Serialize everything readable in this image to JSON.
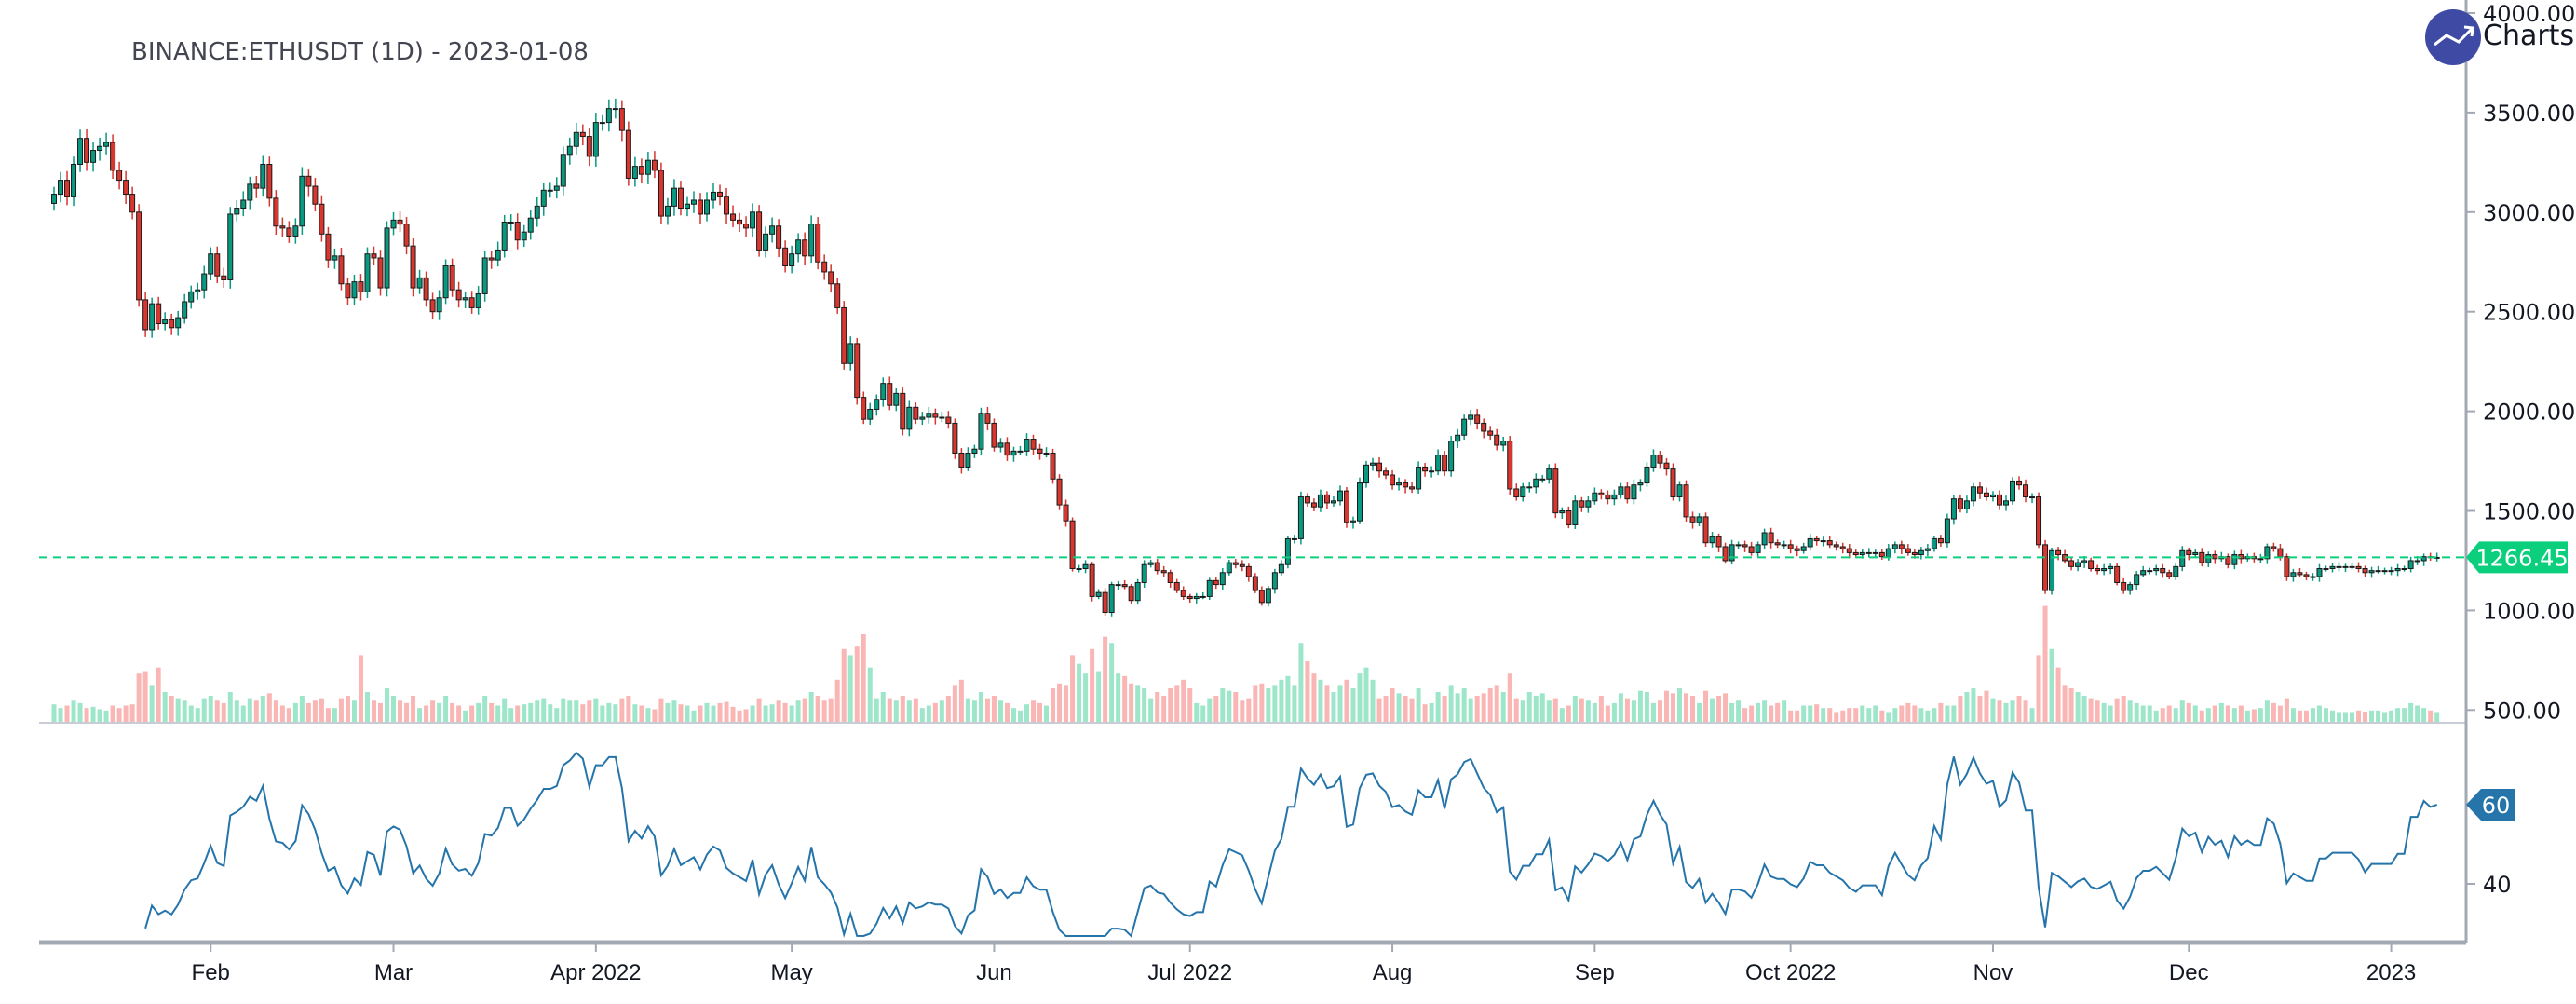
{
  "title": "BINANCE:ETHUSDT (1D) - 2023-01-08",
  "brand": {
    "text": "Charts p",
    "icon": "trend-up-icon",
    "color": "#3f4aa5"
  },
  "colors": {
    "up": "#089981",
    "down": "#d8362f",
    "vol_up": "#9ee6c9",
    "vol_down": "#f9b6b4",
    "last_price": "#0ccf7e",
    "rsi": "#2574aa"
  },
  "chart_data": {
    "type": "candlestick",
    "symbol": "BINANCE:ETHUSDT",
    "interval": "1D",
    "start_date": "2022-01-08",
    "end_date": "2023-01-08",
    "price_axis": {
      "ticks": [
        "500.00",
        "1000.00",
        "1500.00",
        "2000.00",
        "2500.00",
        "3000.00",
        "3500.00",
        "4000.00"
      ],
      "range": [
        500,
        4000
      ]
    },
    "last_price": {
      "value": 1266.45,
      "label": "1266.45"
    },
    "x_ticks": [
      {
        "label": "Feb",
        "date": "2022-02-01"
      },
      {
        "label": "Mar",
        "date": "2022-03-01"
      },
      {
        "label": "Apr 2022",
        "date": "2022-04-01"
      },
      {
        "label": "May",
        "date": "2022-05-01"
      },
      {
        "label": "Jun",
        "date": "2022-06-01"
      },
      {
        "label": "Jul 2022",
        "date": "2022-07-01"
      },
      {
        "label": "Aug",
        "date": "2022-08-01"
      },
      {
        "label": "Sep",
        "date": "2022-09-01"
      },
      {
        "label": "Oct 2022",
        "date": "2022-10-01"
      },
      {
        "label": "Nov",
        "date": "2022-11-01"
      },
      {
        "label": "Dec",
        "date": "2022-12-01"
      },
      {
        "label": "2023",
        "date": "2023-01-01"
      }
    ],
    "closes": [
      3090,
      3160,
      3080,
      3240,
      3370,
      3250,
      3310,
      3330,
      3350,
      3210,
      3160,
      3090,
      3000,
      2560,
      2410,
      2540,
      2440,
      2460,
      2420,
      2470,
      2550,
      2600,
      2610,
      2690,
      2790,
      2680,
      2660,
      2990,
      3020,
      3060,
      3140,
      3120,
      3240,
      3070,
      2930,
      2920,
      2880,
      2930,
      3180,
      3130,
      3040,
      2890,
      2760,
      2780,
      2640,
      2570,
      2650,
      2600,
      2790,
      2770,
      2620,
      2920,
      2960,
      2940,
      2830,
      2620,
      2670,
      2560,
      2500,
      2570,
      2730,
      2610,
      2560,
      2570,
      2520,
      2590,
      2770,
      2760,
      2810,
      2950,
      2950,
      2860,
      2900,
      2970,
      3030,
      3110,
      3110,
      3130,
      3290,
      3330,
      3400,
      3380,
      3280,
      3450,
      3450,
      3520,
      3520,
      3410,
      3170,
      3230,
      3190,
      3260,
      3210,
      2980,
      3030,
      3120,
      3020,
      3040,
      3060,
      2990,
      3060,
      3100,
      3080,
      2990,
      2960,
      2940,
      2920,
      3000,
      2810,
      2890,
      2930,
      2820,
      2730,
      2790,
      2860,
      2780,
      2940,
      2750,
      2700,
      2640,
      2520,
      2240,
      2340,
      2070,
      1960,
      2010,
      2060,
      2140,
      2030,
      2090,
      1910,
      2020,
      1960,
      1970,
      1990,
      1970,
      1970,
      1940,
      1790,
      1720,
      1790,
      1810,
      1990,
      1940,
      1820,
      1840,
      1780,
      1800,
      1800,
      1860,
      1810,
      1790,
      1790,
      1660,
      1530,
      1450,
      1210,
      1210,
      1230,
      1070,
      1090,
      990,
      1130,
      1130,
      1120,
      1050,
      1140,
      1230,
      1240,
      1200,
      1190,
      1140,
      1100,
      1070,
      1060,
      1070,
      1070,
      1150,
      1130,
      1190,
      1240,
      1230,
      1220,
      1170,
      1100,
      1040,
      1110,
      1190,
      1230,
      1360,
      1360,
      1570,
      1540,
      1520,
      1580,
      1540,
      1550,
      1600,
      1440,
      1450,
      1640,
      1730,
      1740,
      1700,
      1680,
      1630,
      1640,
      1620,
      1610,
      1720,
      1700,
      1700,
      1780,
      1700,
      1850,
      1880,
      1960,
      1980,
      1940,
      1900,
      1880,
      1830,
      1850,
      1610,
      1570,
      1620,
      1620,
      1660,
      1660,
      1710,
      1490,
      1500,
      1430,
      1550,
      1520,
      1550,
      1590,
      1580,
      1560,
      1580,
      1620,
      1560,
      1630,
      1640,
      1720,
      1780,
      1740,
      1710,
      1570,
      1630,
      1470,
      1440,
      1470,
      1340,
      1370,
      1320,
      1250,
      1330,
      1330,
      1320,
      1290,
      1330,
      1390,
      1340,
      1330,
      1330,
      1310,
      1300,
      1320,
      1360,
      1350,
      1350,
      1330,
      1320,
      1310,
      1290,
      1280,
      1290,
      1290,
      1290,
      1270,
      1310,
      1330,
      1310,
      1290,
      1280,
      1300,
      1310,
      1360,
      1340,
      1460,
      1560,
      1510,
      1550,
      1620,
      1590,
      1570,
      1580,
      1530,
      1550,
      1650,
      1630,
      1570,
      1570,
      1330,
      1100,
      1300,
      1280,
      1250,
      1220,
      1240,
      1250,
      1210,
      1200,
      1210,
      1220,
      1140,
      1100,
      1130,
      1180,
      1200,
      1200,
      1210,
      1190,
      1170,
      1220,
      1300,
      1280,
      1290,
      1240,
      1280,
      1260,
      1270,
      1230,
      1280,
      1260,
      1270,
      1260,
      1260,
      1320,
      1310,
      1270,
      1170,
      1190,
      1180,
      1170,
      1170,
      1210,
      1210,
      1220,
      1220,
      1220,
      1220,
      1210,
      1190,
      1200,
      1200,
      1200,
      1200,
      1210,
      1210,
      1250,
      1250,
      1270,
      1265,
      1266.45
    ],
    "volume_relative": [
      15,
      12,
      14,
      18,
      16,
      12,
      13,
      11,
      10,
      14,
      12,
      14,
      15,
      40,
      42,
      30,
      45,
      25,
      22,
      20,
      18,
      14,
      12,
      20,
      22,
      18,
      16,
      25,
      18,
      14,
      20,
      18,
      22,
      24,
      18,
      14,
      12,
      16,
      22,
      16,
      18,
      20,
      12,
      12,
      20,
      22,
      18,
      55,
      25,
      18,
      16,
      28,
      22,
      18,
      16,
      22,
      12,
      14,
      18,
      16,
      22,
      16,
      14,
      10,
      14,
      16,
      22,
      16,
      14,
      20,
      12,
      14,
      15,
      16,
      18,
      20,
      15,
      12,
      20,
      18,
      18,
      15,
      18,
      20,
      14,
      16,
      15,
      20,
      22,
      15,
      14,
      12,
      11,
      20,
      16,
      18,
      15,
      14,
      10,
      14,
      16,
      14,
      16,
      17,
      13,
      10,
      11,
      14,
      20,
      14,
      15,
      18,
      16,
      14,
      18,
      20,
      25,
      22,
      18,
      20,
      35,
      60,
      55,
      62,
      72,
      45,
      20,
      25,
      20,
      18,
      22,
      18,
      20,
      12,
      14,
      16,
      18,
      22,
      30,
      35,
      20,
      18,
      25,
      20,
      22,
      18,
      16,
      12,
      10,
      15,
      18,
      16,
      14,
      28,
      32,
      30,
      55,
      48,
      40,
      60,
      42,
      70,
      65,
      40,
      38,
      32,
      30,
      28,
      20,
      25,
      22,
      28,
      30,
      35,
      28,
      16,
      14,
      20,
      22,
      28,
      26,
      25,
      18,
      20,
      30,
      32,
      28,
      30,
      35,
      38,
      30,
      65,
      50,
      40,
      35,
      30,
      25,
      30,
      35,
      28,
      40,
      45,
      35,
      20,
      22,
      28,
      24,
      22,
      20,
      28,
      15,
      16,
      25,
      22,
      30,
      24,
      28,
      20,
      22,
      24,
      28,
      30,
      25,
      40,
      20,
      18,
      25,
      22,
      24,
      18,
      20,
      12,
      14,
      22,
      20,
      18,
      16,
      22,
      14,
      16,
      24,
      20,
      18,
      26,
      25,
      16,
      18,
      26,
      24,
      28,
      24,
      22,
      16,
      26,
      20,
      22,
      24,
      16,
      18,
      12,
      14,
      16,
      18,
      14,
      16,
      18,
      10,
      10,
      14,
      14,
      15,
      12,
      12,
      8,
      10,
      12,
      12,
      14,
      12,
      14,
      10,
      8,
      12,
      14,
      16,
      14,
      12,
      10,
      12,
      16,
      14,
      14,
      22,
      25,
      28,
      22,
      26,
      20,
      18,
      16,
      18,
      22,
      18,
      12,
      55,
      95,
      60,
      45,
      30,
      28,
      25,
      22,
      20,
      18,
      16,
      14,
      20,
      22,
      18,
      16,
      14,
      14,
      10,
      12,
      14,
      12,
      18,
      16,
      14,
      10,
      12,
      14,
      16,
      14,
      12,
      14,
      10,
      11,
      12,
      18,
      16,
      14,
      20,
      12,
      10,
      10,
      12,
      14,
      12,
      10,
      8,
      8,
      8,
      10,
      9,
      10,
      10,
      8,
      10,
      12,
      12,
      16,
      14,
      12,
      10,
      8
    ],
    "rsi": {
      "period": 14,
      "ticks": [
        "40",
        "60"
      ],
      "last_label": "60"
    }
  }
}
